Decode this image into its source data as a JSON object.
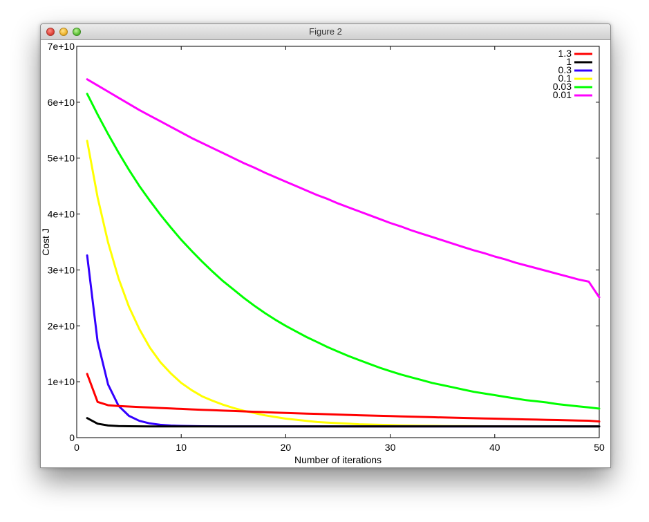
{
  "window": {
    "title": "Figure 2"
  },
  "chart_data": {
    "type": "line",
    "title": "",
    "xlabel": "Number of iterations",
    "ylabel": "Cost J",
    "xlim": [
      0,
      50
    ],
    "ylim": [
      0,
      70000000000
    ],
    "xticks": [
      0,
      10,
      20,
      30,
      40,
      50
    ],
    "yticks": [
      0,
      10000000000,
      20000000000,
      30000000000,
      40000000000,
      50000000000,
      60000000000,
      70000000000
    ],
    "xtick_labels": [
      "0",
      "10",
      "20",
      "30",
      "40",
      "50"
    ],
    "ytick_labels": [
      "0",
      "1e+10",
      "2e+10",
      "3e+10",
      "4e+10",
      "5e+10",
      "6e+10",
      "7e+10"
    ],
    "grid": false,
    "legend_position": "top-right",
    "x": [
      1,
      2,
      3,
      4,
      5,
      6,
      7,
      8,
      9,
      10,
      11,
      12,
      13,
      14,
      15,
      16,
      17,
      18,
      19,
      20,
      21,
      22,
      23,
      24,
      25,
      26,
      27,
      28,
      29,
      30,
      31,
      32,
      33,
      34,
      35,
      36,
      37,
      38,
      39,
      40,
      41,
      42,
      43,
      44,
      45,
      46,
      47,
      48,
      49,
      50
    ],
    "series": [
      {
        "name": "1.3",
        "color": "#ff0000",
        "values": [
          11400000000,
          6400000000,
          5800000000,
          5650000000,
          5560000000,
          5470000000,
          5390000000,
          5300000000,
          5220000000,
          5140000000,
          5060000000,
          4980000000,
          4910000000,
          4840000000,
          4770000000,
          4700000000,
          4630000000,
          4560000000,
          4490000000,
          4430000000,
          4370000000,
          4310000000,
          4250000000,
          4190000000,
          4130000000,
          4070000000,
          4010000000,
          3960000000,
          3910000000,
          3860000000,
          3810000000,
          3760000000,
          3710000000,
          3660000000,
          3610000000,
          3570000000,
          3520000000,
          3480000000,
          3440000000,
          3400000000,
          3350000000,
          3310000000,
          3270000000,
          3230000000,
          3190000000,
          3150000000,
          3110000000,
          3070000000,
          3030000000,
          2900000000
        ]
      },
      {
        "name": "1",
        "color": "#000000",
        "values": [
          3500000000,
          2500000000,
          2180000000,
          2080000000,
          2040000000,
          2030000000,
          2020000000,
          2020000000,
          2020000000,
          2020000000,
          2020000000,
          2020000000,
          2020000000,
          2020000000,
          2020000000,
          2020000000,
          2020000000,
          2020000000,
          2020000000,
          2020000000,
          2020000000,
          2020000000,
          2020000000,
          2020000000,
          2020000000,
          2020000000,
          2020000000,
          2020000000,
          2020000000,
          2020000000,
          2020000000,
          2020000000,
          2020000000,
          2020000000,
          2020000000,
          2020000000,
          2020000000,
          2020000000,
          2020000000,
          2020000000,
          2020000000,
          2020000000,
          2020000000,
          2020000000,
          2020000000,
          2020000000,
          2020000000,
          2020000000,
          2020000000,
          2020000000
        ]
      },
      {
        "name": "0.3",
        "color": "#3300ff",
        "values": [
          32600000000,
          17200000000,
          9500000000,
          5700000000,
          3900000000,
          3000000000,
          2550000000,
          2300000000,
          2170000000,
          2100000000,
          2060000000,
          2040000000,
          2030000000,
          2020000000,
          2020000000,
          2020000000,
          2020000000,
          2020000000,
          2020000000,
          2020000000,
          2020000000,
          2020000000,
          2020000000,
          2020000000,
          2020000000,
          2020000000,
          2020000000,
          2020000000,
          2020000000,
          2020000000,
          2020000000,
          2020000000,
          2020000000,
          2020000000,
          2020000000,
          2020000000,
          2020000000,
          2020000000,
          2020000000,
          2020000000,
          2020000000,
          2020000000,
          2020000000,
          2020000000,
          2020000000,
          2020000000,
          2020000000,
          2020000000,
          2020000000,
          2020000000
        ]
      },
      {
        "name": "0.1",
        "color": "#ffff00",
        "values": [
          53100000000,
          43000000000,
          34900000000,
          28500000000,
          23400000000,
          19400000000,
          16100000000,
          13500000000,
          11500000000,
          9800000000,
          8500000000,
          7400000000,
          6600000000,
          5900000000,
          5300000000,
          4800000000,
          4400000000,
          4000000000,
          3700000000,
          3400000000,
          3200000000,
          3000000000,
          2800000000,
          2700000000,
          2600000000,
          2500000000,
          2400000000,
          2350000000,
          2300000000,
          2250000000,
          2200000000,
          2170000000,
          2140000000,
          2110000000,
          2090000000,
          2070000000,
          2060000000,
          2050000000,
          2040000000,
          2030000000,
          2030000000,
          2020000000,
          2020000000,
          2020000000,
          2020000000,
          2020000000,
          2020000000,
          2020000000,
          2020000000,
          2020000000
        ]
      },
      {
        "name": "0.03",
        "color": "#00ff00",
        "values": [
          61500000000,
          57800000000,
          54300000000,
          51000000000,
          47900000000,
          45000000000,
          42400000000,
          39900000000,
          37600000000,
          35400000000,
          33400000000,
          31500000000,
          29700000000,
          28000000000,
          26500000000,
          25000000000,
          23600000000,
          22300000000,
          21100000000,
          20000000000,
          19000000000,
          18000000000,
          17100000000,
          16200000000,
          15400000000,
          14600000000,
          13900000000,
          13200000000,
          12500000000,
          11900000000,
          11300000000,
          10800000000,
          10300000000,
          9800000000,
          9400000000,
          9000000000,
          8600000000,
          8200000000,
          7900000000,
          7600000000,
          7300000000,
          7000000000,
          6700000000,
          6500000000,
          6300000000,
          6000000000,
          5800000000,
          5600000000,
          5400000000,
          5200000000
        ]
      },
      {
        "name": "0.01",
        "color": "#ff00ff",
        "values": [
          64100000000,
          63000000000,
          61900000000,
          60800000000,
          59700000000,
          58600000000,
          57600000000,
          56600000000,
          55600000000,
          54600000000,
          53600000000,
          52700000000,
          51800000000,
          50900000000,
          50000000000,
          49100000000,
          48300000000,
          47400000000,
          46600000000,
          45800000000,
          45000000000,
          44200000000,
          43400000000,
          42700000000,
          41900000000,
          41200000000,
          40500000000,
          39800000000,
          39100000000,
          38400000000,
          37800000000,
          37100000000,
          36500000000,
          35900000000,
          35300000000,
          34700000000,
          34100000000,
          33500000000,
          33000000000,
          32400000000,
          31900000000,
          31300000000,
          30800000000,
          30300000000,
          29800000000,
          29300000000,
          28800000000,
          28300000000,
          27900000000,
          25100000000
        ]
      }
    ]
  }
}
